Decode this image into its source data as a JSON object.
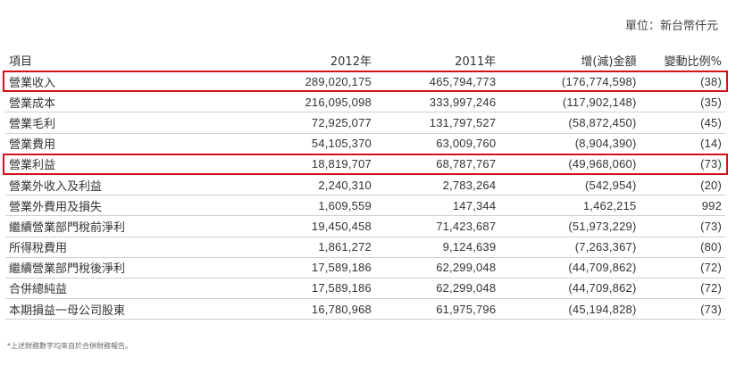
{
  "unit_label": "單位：新台幣仟元",
  "table": {
    "headers": [
      "項目",
      "2012年",
      "2011年",
      "增(減)金額",
      "變動比例%"
    ],
    "rows": [
      {
        "label": "營業收入",
        "y2012": "289,020,175",
        "y2011": "465,794,773",
        "change": "(176,774,598)",
        "pct": "(38)",
        "highlight": true
      },
      {
        "label": "營業成本",
        "y2012": "216,095,098",
        "y2011": "333,997,246",
        "change": "(117,902,148)",
        "pct": "(35)",
        "highlight": false
      },
      {
        "label": "營業毛利",
        "y2012": "72,925,077",
        "y2011": "131,797,527",
        "change": "(58,872,450)",
        "pct": "(45)",
        "highlight": false
      },
      {
        "label": "營業費用",
        "y2012": "54,105,370",
        "y2011": "63,009,760",
        "change": "(8,904,390)",
        "pct": "(14)",
        "highlight": false
      },
      {
        "label": "營業利益",
        "y2012": "18,819,707",
        "y2011": "68,787,767",
        "change": "(49,968,060)",
        "pct": "(73)",
        "highlight": true
      },
      {
        "label": "營業外收入及利益",
        "y2012": "2,240,310",
        "y2011": "2,783,264",
        "change": "(542,954)",
        "pct": "(20)",
        "highlight": false
      },
      {
        "label": "營業外費用及損失",
        "y2012": "1,609,559",
        "y2011": "147,344",
        "change": "1,462,215",
        "pct": "992",
        "highlight": false
      },
      {
        "label": "繼續營業部門稅前淨利",
        "y2012": "19,450,458",
        "y2011": "71,423,687",
        "change": "(51,973,229)",
        "pct": "(73)",
        "highlight": false
      },
      {
        "label": "所得稅費用",
        "y2012": "1,861,272",
        "y2011": "9,124,639",
        "change": "(7,263,367)",
        "pct": "(80)",
        "highlight": false
      },
      {
        "label": "繼續營業部門稅後淨利",
        "y2012": "17,589,186",
        "y2011": "62,299,048",
        "change": "(44,709,862)",
        "pct": "(72)",
        "highlight": false
      },
      {
        "label": "合併總純益",
        "y2012": "17,589,186",
        "y2011": "62,299,048",
        "change": "(44,709,862)",
        "pct": "(72)",
        "highlight": false
      },
      {
        "label": "本期損益一母公司股東",
        "y2012": "16,780,968",
        "y2011": "61,975,796",
        "change": "(45,194,828)",
        "pct": "(73)",
        "highlight": false
      }
    ]
  },
  "footnote": "*上述財務數字均來自於合併財務報告。",
  "colors": {
    "highlight_border": "#d3111d",
    "text": "#333333",
    "rule": "#cfcfcf"
  }
}
